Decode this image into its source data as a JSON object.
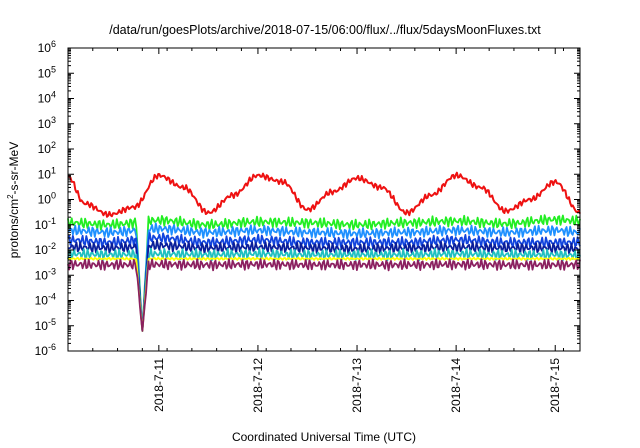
{
  "chart_data": {
    "type": "line",
    "title": "/data/run/goesPlots/archive/2018-07-15/06:00/flux/../flux/5daysMoonFluxes.txt",
    "xlabel": "Coordinated Universal Time (UTC)",
    "ylabel": {
      "base": "protons/cm",
      "sup": "2",
      "rest": "-s-sr-MeV"
    },
    "y_scale": "log",
    "ylim_exponents": [
      -6,
      6
    ],
    "y_ticks": [
      {
        "base": "10",
        "exp": "-6"
      },
      {
        "base": "10",
        "exp": "-5"
      },
      {
        "base": "10",
        "exp": "-4"
      },
      {
        "base": "10",
        "exp": "-3"
      },
      {
        "base": "10",
        "exp": "-2"
      },
      {
        "base": "10",
        "exp": "-1"
      },
      {
        "base": "10",
        "exp": "0"
      },
      {
        "base": "10",
        "exp": "1"
      },
      {
        "base": "10",
        "exp": "2"
      },
      {
        "base": "10",
        "exp": "3"
      },
      {
        "base": "10",
        "exp": "4"
      },
      {
        "base": "10",
        "exp": "5"
      },
      {
        "base": "10",
        "exp": "6"
      }
    ],
    "xlim": [
      "2018-07-10T02:00",
      "2018-07-15T06:00"
    ],
    "x_ticks": [
      {
        "date": "2018-07-11T00:00",
        "label": "2018-7-11"
      },
      {
        "date": "2018-07-12T00:00",
        "label": "2018-7-12"
      },
      {
        "date": "2018-07-13T00:00",
        "label": "2018-7-13"
      },
      {
        "date": "2018-07-14T00:00",
        "label": "2018-7-14"
      },
      {
        "date": "2018-07-15T00:00",
        "label": "2018-7-15"
      }
    ],
    "grid": false,
    "legend": "none",
    "series": [
      {
        "color": "#ee1111",
        "x": [
          "2018-07-10T02:00",
          "2018-07-10T06:00",
          "2018-07-10T12:00",
          "2018-07-10T18:00",
          "2018-07-11T00:00",
          "2018-07-11T06:00",
          "2018-07-11T12:00",
          "2018-07-11T18:00",
          "2018-07-12T00:00",
          "2018-07-12T06:00",
          "2018-07-12T12:00",
          "2018-07-12T18:00",
          "2018-07-13T00:00",
          "2018-07-13T06:00",
          "2018-07-13T12:00",
          "2018-07-13T18:00",
          "2018-07-14T00:00",
          "2018-07-14T06:00",
          "2018-07-14T12:00",
          "2018-07-14T18:00",
          "2018-07-15T00:00",
          "2018-07-15T06:00"
        ],
        "y": [
          8,
          0.7,
          0.25,
          0.5,
          9,
          3,
          0.3,
          1.5,
          9,
          5,
          0.4,
          2,
          7,
          3,
          0.3,
          1.5,
          9,
          3,
          0.35,
          1,
          5,
          0.3
        ]
      },
      {
        "color": "#22ee22",
        "x": [
          "2018-07-10T02:00",
          "2018-07-10T12:00",
          "2018-07-11T00:00",
          "2018-07-11T12:00",
          "2018-07-12T00:00",
          "2018-07-12T12:00",
          "2018-07-13T00:00",
          "2018-07-13T12:00",
          "2018-07-14T00:00",
          "2018-07-14T12:00",
          "2018-07-15T00:00",
          "2018-07-15T06:00"
        ],
        "y": [
          0.12,
          0.1,
          0.15,
          0.1,
          0.13,
          0.12,
          0.1,
          0.12,
          0.14,
          0.11,
          0.16,
          0.14
        ]
      },
      {
        "color": "#1e90ff",
        "x": [
          "2018-07-10T02:00",
          "2018-07-10T12:00",
          "2018-07-11T00:00",
          "2018-07-11T12:00",
          "2018-07-12T00:00",
          "2018-07-12T12:00",
          "2018-07-13T00:00",
          "2018-07-13T12:00",
          "2018-07-14T00:00",
          "2018-07-14T12:00",
          "2018-07-15T00:00",
          "2018-07-15T06:00"
        ],
        "y": [
          0.06,
          0.05,
          0.07,
          0.05,
          0.06,
          0.05,
          0.045,
          0.05,
          0.06,
          0.05,
          0.06,
          0.05
        ]
      },
      {
        "color": "#1144dd",
        "x": [
          "2018-07-10T02:00",
          "2018-07-10T12:00",
          "2018-07-11T00:00",
          "2018-07-11T12:00",
          "2018-07-12T00:00",
          "2018-07-12T12:00",
          "2018-07-13T00:00",
          "2018-07-13T12:00",
          "2018-07-14T00:00",
          "2018-07-14T12:00",
          "2018-07-15T00:00",
          "2018-07-15T06:00"
        ],
        "y": [
          0.025,
          0.02,
          0.03,
          0.02,
          0.025,
          0.02,
          0.02,
          0.02,
          0.025,
          0.02,
          0.02,
          0.02
        ]
      },
      {
        "color": "#0a1e9a",
        "x": [
          "2018-07-10T02:00",
          "2018-07-10T12:00",
          "2018-07-11T00:00",
          "2018-07-11T12:00",
          "2018-07-12T00:00",
          "2018-07-12T12:00",
          "2018-07-13T00:00",
          "2018-07-13T12:00",
          "2018-07-14T00:00",
          "2018-07-14T12:00",
          "2018-07-15T00:00",
          "2018-07-15T06:00"
        ],
        "y": [
          0.013,
          0.012,
          0.015,
          0.012,
          0.013,
          0.012,
          0.011,
          0.012,
          0.013,
          0.012,
          0.012,
          0.011
        ]
      },
      {
        "color": "#20c0c0",
        "x": [
          "2018-07-10T02:00",
          "2018-07-10T12:00",
          "2018-07-11T00:00",
          "2018-07-11T12:00",
          "2018-07-12T00:00",
          "2018-07-12T12:00",
          "2018-07-13T00:00",
          "2018-07-13T12:00",
          "2018-07-14T00:00",
          "2018-07-14T12:00",
          "2018-07-15T00:00",
          "2018-07-15T06:00"
        ],
        "y": [
          0.007,
          0.0065,
          0.007,
          0.0065,
          0.007,
          0.0065,
          0.0065,
          0.0065,
          0.007,
          0.0065,
          0.0065,
          0.006
        ]
      },
      {
        "color": "#ffff00",
        "x": [
          "2018-07-10T02:00",
          "2018-07-10T12:00",
          "2018-07-11T00:00",
          "2018-07-11T12:00",
          "2018-07-12T00:00",
          "2018-07-12T12:00",
          "2018-07-13T00:00",
          "2018-07-13T12:00",
          "2018-07-14T00:00",
          "2018-07-14T12:00",
          "2018-07-15T00:00",
          "2018-07-15T06:00"
        ],
        "y": [
          0.0045,
          0.0045,
          0.0045,
          0.0045,
          0.0045,
          0.0045,
          0.0045,
          0.0045,
          0.0045,
          0.0045,
          0.0045,
          0.0045
        ]
      },
      {
        "color": "#8b2060",
        "x": [
          "2018-07-10T02:00",
          "2018-07-10T12:00",
          "2018-07-11T00:00",
          "2018-07-11T12:00",
          "2018-07-12T00:00",
          "2018-07-12T12:00",
          "2018-07-13T00:00",
          "2018-07-13T12:00",
          "2018-07-14T00:00",
          "2018-07-14T12:00",
          "2018-07-15T00:00",
          "2018-07-15T06:00"
        ],
        "y": [
          0.0027,
          0.0026,
          0.0027,
          0.0026,
          0.0027,
          0.0026,
          0.0026,
          0.0026,
          0.0027,
          0.0026,
          0.0026,
          0.0026
        ]
      }
    ],
    "dip_event": {
      "date": "2018-07-10T20:00",
      "min": 6e-06
    }
  }
}
